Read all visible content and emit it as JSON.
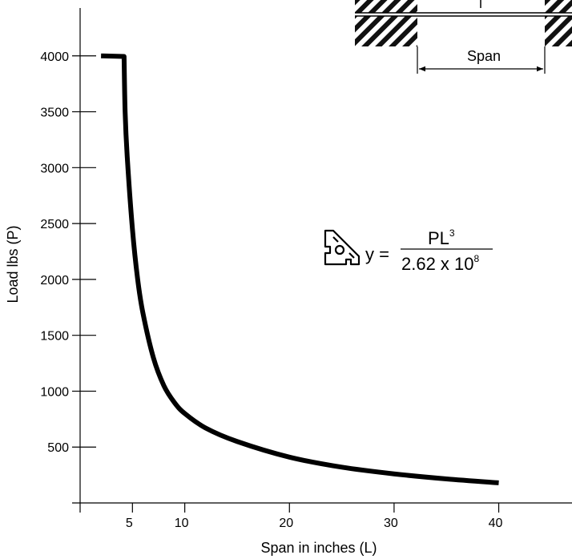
{
  "chart_data": {
    "type": "line",
    "xlabel": "Span in inches (L)",
    "ylabel": "Load lbs (P)",
    "x_ticks": [
      5,
      10,
      20,
      30,
      40
    ],
    "y_ticks": [
      500,
      1000,
      1500,
      2000,
      2500,
      3000,
      3500,
      4000
    ],
    "xlim": [
      0,
      47
    ],
    "ylim": [
      0,
      4500
    ],
    "grid": false,
    "series": [
      {
        "values": [
          {
            "x": 2,
            "y": 4000
          },
          {
            "x": 4.2,
            "y": 3995
          },
          {
            "x": 4.3,
            "y": 3500
          },
          {
            "x": 4.5,
            "y": 3100
          },
          {
            "x": 5,
            "y": 2450
          },
          {
            "x": 5.5,
            "y": 2000
          },
          {
            "x": 6,
            "y": 1700
          },
          {
            "x": 7,
            "y": 1300
          },
          {
            "x": 8,
            "y": 1050
          },
          {
            "x": 9,
            "y": 900
          },
          {
            "x": 10,
            "y": 800
          },
          {
            "x": 12,
            "y": 670
          },
          {
            "x": 15,
            "y": 550
          },
          {
            "x": 20,
            "y": 410
          },
          {
            "x": 25,
            "y": 320
          },
          {
            "x": 30,
            "y": 260
          },
          {
            "x": 35,
            "y": 215
          },
          {
            "x": 40,
            "y": 180
          }
        ]
      }
    ]
  },
  "equation": {
    "lhs": "y =",
    "numerator": "PL",
    "numerator_exp": "3",
    "denominator": "2.62 x 10",
    "denominator_exp": "8",
    "icon": "extrusion-profile-icon"
  },
  "diagram": {
    "span_label": "Span"
  }
}
